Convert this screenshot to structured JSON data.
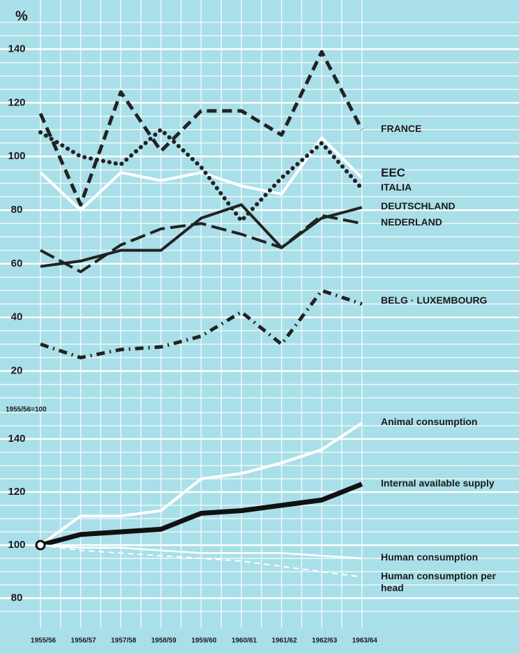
{
  "chart_data": [
    {
      "type": "line",
      "y_label": "%",
      "ylim": [
        10,
        150
      ],
      "yticks": [
        20,
        40,
        60,
        80,
        100,
        120,
        140
      ],
      "grid": true,
      "series": [
        {
          "name": "FRANCE",
          "color": "#222222",
          "style": "dashed",
          "values": [
            116,
            82,
            124,
            102,
            117,
            117,
            108,
            139,
            110
          ]
        },
        {
          "name": "EEC",
          "color": "#ffffff",
          "style": "solid",
          "values": [
            94,
            80,
            94,
            91,
            94,
            89,
            86,
            107,
            92
          ]
        },
        {
          "name": "ITALIA",
          "color": "#222222",
          "style": "dotted",
          "values": [
            109,
            100,
            97,
            110,
            96,
            76,
            92,
            105,
            88
          ]
        },
        {
          "name": "DEUTSCHLAND",
          "color": "#222222",
          "style": "solid",
          "values": [
            59,
            61,
            65,
            65,
            77,
            82,
            66,
            77,
            81
          ]
        },
        {
          "name": "NEDERLAND",
          "color": "#222222",
          "style": "long-dashed",
          "values": [
            65,
            57,
            67,
            73,
            75,
            71,
            66,
            78,
            75
          ]
        },
        {
          "name": "BELG · LUXEMBOURG",
          "color": "#222222",
          "style": "dash-dot",
          "values": [
            30,
            25,
            28,
            29,
            33,
            42,
            30,
            50,
            45
          ]
        }
      ]
    },
    {
      "type": "line",
      "y_label": "1955/56=100",
      "ylim": [
        75,
        150
      ],
      "yticks": [
        80,
        100,
        120,
        140
      ],
      "grid": true,
      "categories": [
        "1955/56",
        "1956/57",
        "1957/58",
        "1958/59",
        "1959/60",
        "1960/61",
        "1961/62",
        "1962/63",
        "1963/64"
      ],
      "series": [
        {
          "name": "Animal consumption",
          "color": "#ffffff",
          "style": "solid",
          "values": [
            100,
            111,
            111,
            113,
            125,
            127,
            131,
            136,
            146
          ]
        },
        {
          "name": "Internal available supply",
          "color": "#111111",
          "style": "thick",
          "values": [
            100,
            104,
            105,
            106,
            112,
            113,
            115,
            117,
            123
          ]
        },
        {
          "name": "Human consumption",
          "color": "#ffffff",
          "style": "thin",
          "values": [
            100,
            99,
            99,
            98,
            97,
            97,
            97,
            96,
            95
          ]
        },
        {
          "name": "Human consumption per head",
          "color": "#ffffff",
          "style": "thin-dashed",
          "values": [
            100,
            98,
            97,
            96,
            95,
            94,
            92,
            90,
            88
          ]
        }
      ]
    }
  ]
}
